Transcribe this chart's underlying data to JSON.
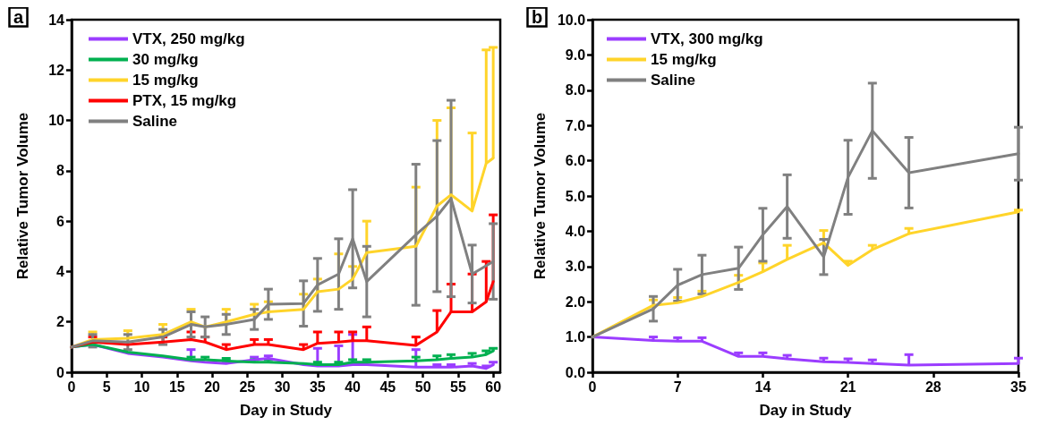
{
  "chart_data": [
    {
      "type": "line",
      "title": "a",
      "xlabel": "Day in Study",
      "ylabel": "Relative Tumor Volume",
      "x": [
        0,
        3,
        8,
        13,
        17,
        19,
        22,
        26,
        28,
        33,
        35,
        38,
        40,
        42,
        49,
        52,
        54,
        57,
        59,
        60
      ],
      "xlim": [
        0,
        61
      ],
      "xticks": [
        0,
        5,
        10,
        15,
        20,
        25,
        30,
        35,
        40,
        45,
        50,
        55,
        60
      ],
      "ylim": [
        0,
        14
      ],
      "yticks": [
        0,
        2,
        4,
        6,
        8,
        10,
        12,
        14
      ],
      "grid": false,
      "marker": "none",
      "legend": "top left",
      "series": [
        {
          "name": "VTX, 250 mg/kg",
          "color": "#9b3dff",
          "values": [
            1.0,
            1.1,
            0.75,
            0.6,
            0.45,
            0.4,
            0.35,
            0.5,
            0.55,
            0.3,
            0.25,
            0.25,
            0.3,
            0.3,
            0.2,
            0.2,
            0.2,
            0.25,
            0.15,
            0.3
          ],
          "errors": [
            null,
            null,
            null,
            null,
            [
              0.45,
              0.9
            ],
            null,
            [
              0.35,
              0.45
            ],
            [
              0.5,
              0.6
            ],
            [
              0.55,
              0.65
            ],
            null,
            [
              0.25,
              0.95
            ],
            [
              0.25,
              1.05
            ],
            [
              0.3,
              1.5
            ],
            [
              0.3,
              0.4
            ],
            [
              0.2,
              0.9
            ],
            [
              0.2,
              0.3
            ],
            [
              0.2,
              0.3
            ],
            [
              0.25,
              0.35
            ],
            [
              0.15,
              0.25
            ],
            [
              0.3,
              0.4
            ]
          ]
        },
        {
          "name": "30 mg/kg",
          "color": "#00b050",
          "values": [
            1.0,
            1.1,
            0.8,
            0.65,
            0.5,
            0.5,
            0.45,
            0.4,
            0.4,
            0.35,
            0.3,
            0.3,
            0.4,
            0.4,
            0.45,
            0.5,
            0.55,
            0.6,
            0.7,
            0.85
          ],
          "errors": [
            null,
            null,
            null,
            null,
            [
              0.5,
              0.6
            ],
            [
              0.5,
              0.6
            ],
            [
              0.45,
              0.55
            ],
            [
              0.4,
              0.5
            ],
            [
              0.4,
              0.5
            ],
            null,
            [
              0.3,
              0.4
            ],
            [
              0.3,
              0.4
            ],
            [
              0.4,
              0.5
            ],
            [
              0.4,
              0.5
            ],
            [
              0.45,
              0.6
            ],
            [
              0.5,
              0.65
            ],
            [
              0.55,
              0.7
            ],
            [
              0.6,
              0.75
            ],
            [
              0.7,
              0.85
            ],
            [
              0.85,
              0.95
            ]
          ]
        },
        {
          "name": "15 mg/kg",
          "color": "#ffd42a",
          "values": [
            1.0,
            1.3,
            1.35,
            1.5,
            2.0,
            1.8,
            2.0,
            2.3,
            2.4,
            2.5,
            3.2,
            3.3,
            3.7,
            4.75,
            5.0,
            6.6,
            7.05,
            6.4,
            8.3,
            8.5
          ],
          "errors": [
            null,
            [
              1.3,
              1.6
            ],
            [
              1.35,
              1.65
            ],
            [
              1.5,
              1.9
            ],
            [
              2.0,
              2.5
            ],
            null,
            [
              2.0,
              2.5
            ],
            [
              2.3,
              2.7
            ],
            [
              2.4,
              2.8
            ],
            [
              2.5,
              3.1
            ],
            [
              3.2,
              3.7
            ],
            [
              3.3,
              4.7
            ],
            [
              3.7,
              4.2
            ],
            [
              4.75,
              6.0
            ],
            [
              5.0,
              7.35
            ],
            [
              6.6,
              10.0
            ],
            [
              7.05,
              10.5
            ],
            [
              6.4,
              9.5
            ],
            [
              8.3,
              12.8
            ],
            [
              8.5,
              12.9
            ]
          ]
        },
        {
          "name": "PTX, 15 mg/kg",
          "color": "#ff0000",
          "values": [
            1.0,
            1.2,
            1.1,
            1.2,
            1.3,
            1.2,
            0.9,
            1.1,
            1.1,
            0.9,
            1.15,
            1.2,
            1.25,
            1.25,
            1.07,
            1.6,
            2.4,
            2.4,
            2.8,
            3.6
          ],
          "errors": [
            null,
            [
              1.2,
              1.4
            ],
            null,
            [
              1.2,
              1.4
            ],
            [
              1.3,
              1.6
            ],
            [
              1.2,
              1.4
            ],
            [
              0.9,
              1.1
            ],
            [
              1.1,
              1.3
            ],
            [
              1.1,
              1.3
            ],
            [
              0.9,
              1.1
            ],
            [
              1.15,
              1.6
            ],
            [
              1.2,
              1.6
            ],
            [
              1.25,
              1.6
            ],
            [
              1.25,
              1.8
            ],
            [
              1.07,
              1.4
            ],
            [
              1.6,
              2.45
            ],
            [
              2.4,
              3.5
            ],
            [
              2.4,
              3.9
            ],
            [
              2.8,
              4.4
            ],
            [
              3.6,
              6.25
            ]
          ]
        },
        {
          "name": "Saline",
          "color": "#808080",
          "values": [
            1.0,
            1.25,
            1.2,
            1.4,
            1.9,
            1.8,
            1.9,
            2.1,
            2.7,
            2.73,
            3.47,
            3.9,
            5.3,
            3.6,
            5.46,
            6.2,
            6.9,
            3.9,
            null,
            4.4
          ],
          "errors": [
            null,
            0.25,
            0.3,
            0.3,
            0.5,
            0.4,
            0.4,
            0.4,
            0.6,
            0.9,
            1.05,
            1.4,
            1.95,
            1.4,
            2.8,
            3.0,
            3.9,
            1.15,
            null,
            1.5
          ]
        }
      ]
    },
    {
      "type": "line",
      "title": "b",
      "xlabel": "Day in Study",
      "ylabel": "Relative Tumor Volume",
      "x": [
        0,
        5,
        7,
        9,
        12,
        14,
        16,
        19,
        21,
        23,
        26,
        35
      ],
      "xlim": [
        0,
        35
      ],
      "xticks": [
        0,
        7,
        14,
        21,
        28,
        35
      ],
      "ylim": [
        0,
        10
      ],
      "yticks": [
        {
          "value": 0,
          "label": "0.0"
        },
        {
          "value": 1,
          "label": "1.0"
        },
        {
          "value": 2,
          "label": "2.0"
        },
        {
          "value": 3,
          "label": "3.0"
        },
        {
          "value": 4,
          "label": "4.0"
        },
        {
          "value": 5,
          "label": "5.0"
        },
        {
          "value": 6,
          "label": "6.0"
        },
        {
          "value": 7,
          "label": "7.0"
        },
        {
          "value": 8,
          "label": "8.0"
        },
        {
          "value": 9,
          "label": "9.0"
        },
        {
          "value": 10,
          "label": "10.0"
        }
      ],
      "grid": false,
      "marker": "none",
      "legend": "top left",
      "series": [
        {
          "name": "VTX, 300 mg/kg",
          "color": "#9b3dff",
          "values": [
            1.0,
            0.9,
            0.88,
            0.88,
            0.45,
            0.45,
            0.38,
            0.3,
            0.28,
            0.25,
            0.2,
            0.25
          ],
          "errors": [
            null,
            [
              0.9,
              1.0
            ],
            [
              0.88,
              0.98
            ],
            [
              0.88,
              0.98
            ],
            [
              0.45,
              0.55
            ],
            [
              0.45,
              0.55
            ],
            [
              0.38,
              0.48
            ],
            [
              0.3,
              0.4
            ],
            [
              0.28,
              0.38
            ],
            [
              0.25,
              0.35
            ],
            [
              0.2,
              0.5
            ],
            [
              0.25,
              0.4
            ]
          ]
        },
        {
          "name": "15 mg/kg",
          "color": "#ffd42a",
          "values": [
            1.0,
            1.9,
            1.97,
            2.15,
            2.55,
            2.85,
            3.2,
            3.67,
            3.03,
            3.48,
            3.93,
            4.55
          ],
          "errors": [
            null,
            [
              1.9,
              2.05
            ],
            [
              1.97,
              2.12
            ],
            [
              2.15,
              2.3
            ],
            [
              2.55,
              2.75
            ],
            [
              2.85,
              3.1
            ],
            [
              3.2,
              3.6
            ],
            [
              3.67,
              4.02
            ],
            [
              3.03,
              3.15
            ],
            [
              3.48,
              3.6
            ],
            [
              3.93,
              4.08
            ],
            [
              4.55,
              4.6
            ]
          ]
        },
        {
          "name": "Saline",
          "color": "#808080",
          "values": [
            1.0,
            1.8,
            2.47,
            2.77,
            2.95,
            3.9,
            4.7,
            3.27,
            5.53,
            6.85,
            5.66,
            6.2
          ],
          "errors": [
            null,
            0.35,
            0.45,
            0.55,
            0.6,
            0.75,
            0.9,
            0.5,
            1.05,
            1.35,
            1.0,
            0.75
          ]
        }
      ]
    }
  ]
}
